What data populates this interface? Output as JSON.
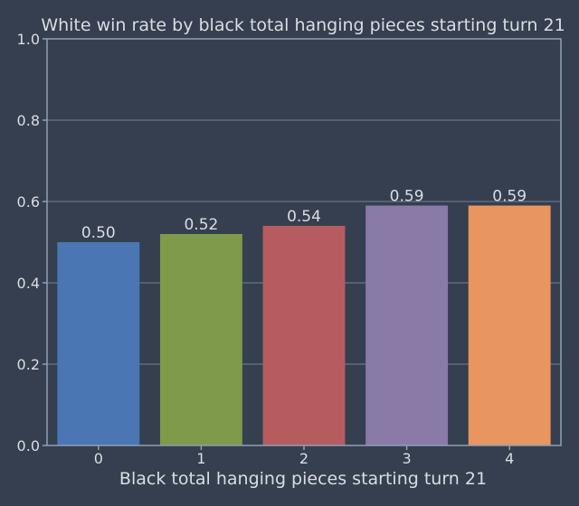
{
  "chart_data": {
    "type": "bar",
    "title": "White win rate by black total hanging pieces starting turn 21",
    "xlabel": "Black total hanging pieces starting turn 21",
    "ylabel": "",
    "categories": [
      "0",
      "1",
      "2",
      "3",
      "4"
    ],
    "values": [
      0.5,
      0.52,
      0.54,
      0.59,
      0.59
    ],
    "value_labels": [
      "0.50",
      "0.52",
      "0.54",
      "0.59",
      "0.59"
    ],
    "bar_colors": [
      "#4a77b4",
      "#7e9a4a",
      "#b65c5f",
      "#8a7aa8",
      "#e8955f"
    ],
    "ylim": [
      0,
      1.0
    ],
    "yticks": [
      0.0,
      0.2,
      0.4,
      0.6,
      0.8,
      1.0
    ],
    "ytick_labels": [
      "0.0",
      "0.2",
      "0.4",
      "0.6",
      "0.8",
      "1.0"
    ],
    "grid": true,
    "legend": "none"
  },
  "colors": {
    "background": "#353f4f",
    "text": "#d9dde3",
    "axis": "#8fa0b5",
    "grid": "#5d6d80"
  }
}
